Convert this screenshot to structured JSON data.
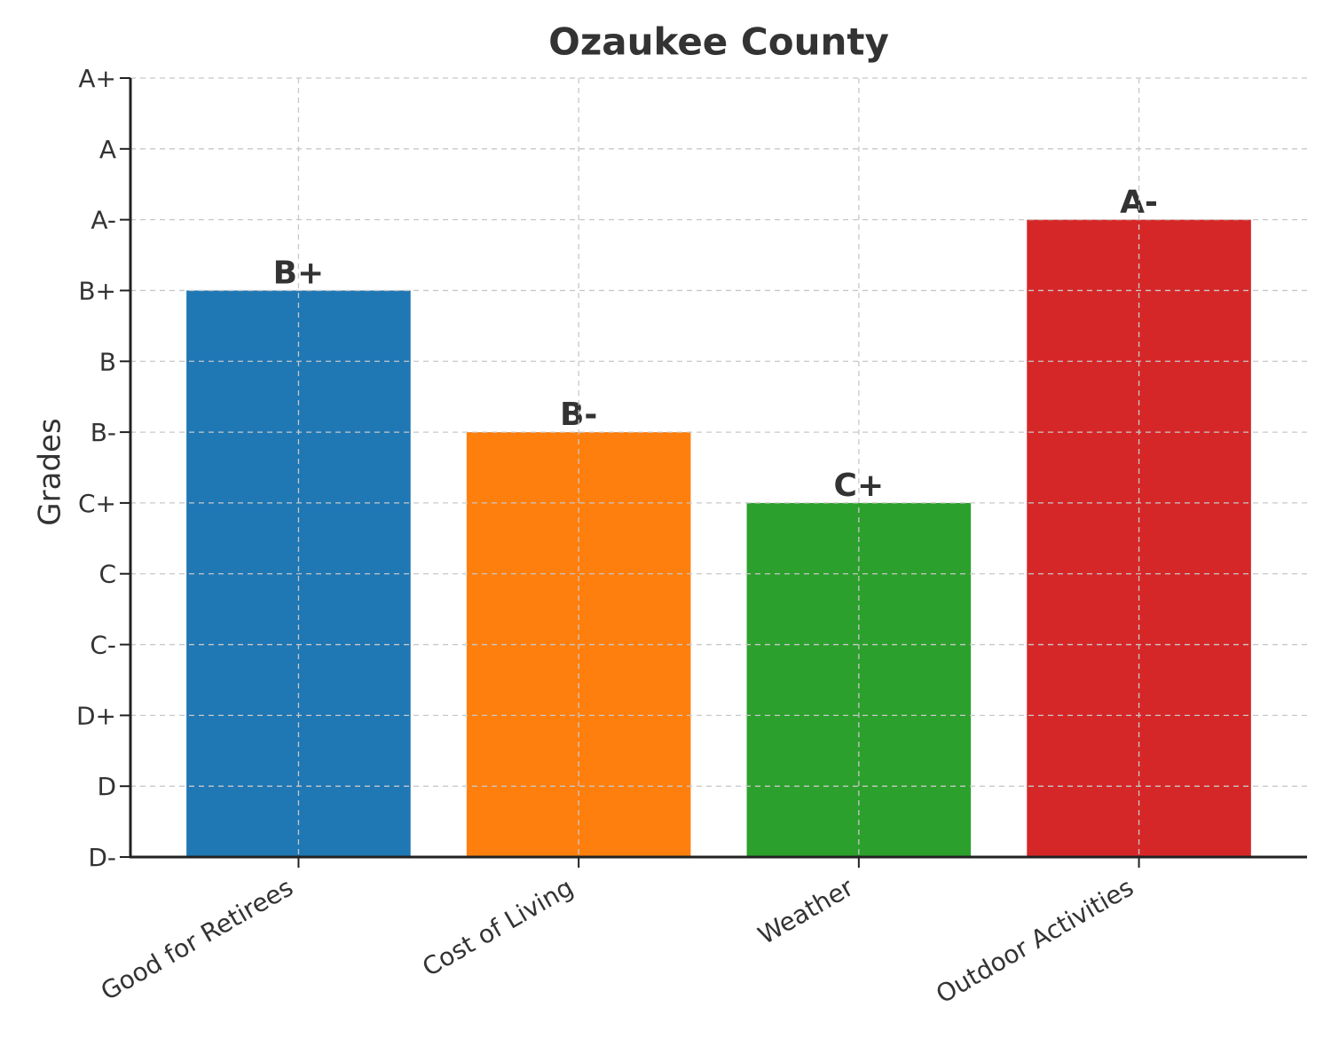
{
  "chart_data": {
    "type": "bar",
    "title": "Ozaukee County",
    "y_label": "Grades",
    "categories": [
      "Good for Retirees",
      "Cost of Living",
      "Weather",
      "Outdoor Activities"
    ],
    "values": [
      8,
      6,
      5,
      9
    ],
    "value_labels": [
      "B+",
      "B-",
      "C+",
      "A-"
    ],
    "colors": [
      "#1f77b4",
      "#ff7f0e",
      "#2ca02c",
      "#d62728"
    ],
    "ylim": [
      0,
      11
    ],
    "yticks": [
      {
        "value": 0,
        "label": "D-"
      },
      {
        "value": 1,
        "label": "D"
      },
      {
        "value": 2,
        "label": "D+"
      },
      {
        "value": 3,
        "label": "C-"
      },
      {
        "value": 4,
        "label": "C"
      },
      {
        "value": 5,
        "label": "C+"
      },
      {
        "value": 6,
        "label": "B-"
      },
      {
        "value": 7,
        "label": "B"
      },
      {
        "value": 8,
        "label": "B+"
      },
      {
        "value": 9,
        "label": "A-"
      },
      {
        "value": 10,
        "label": "A"
      },
      {
        "value": 11,
        "label": "A+"
      }
    ],
    "grid": true
  }
}
